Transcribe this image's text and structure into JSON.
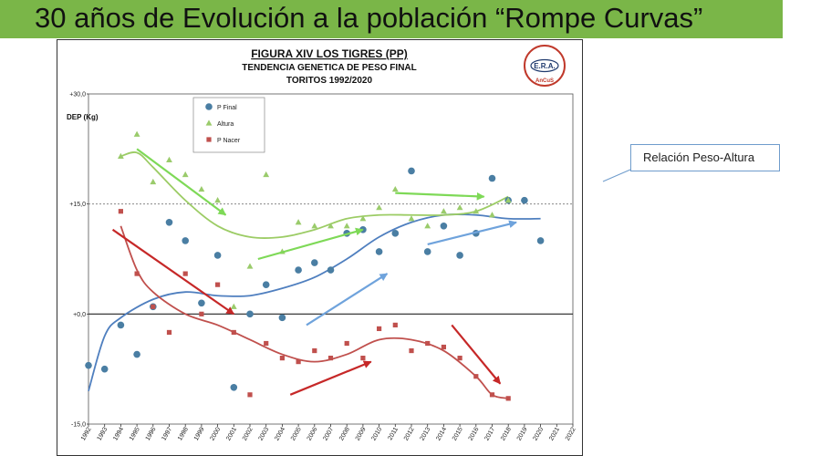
{
  "slide": {
    "title": "30 años de Evolución a la población “Rompe Curvas”",
    "callout": "Relación Peso-Altura"
  },
  "logo": {
    "text_main": "E.R.A.",
    "text_bottom": "AnCuS"
  },
  "colors": {
    "banner": "#7ab648",
    "p_final": "#4a7ea3",
    "altura": "#9acb6b",
    "p_nacer": "#c0504d",
    "trend_blue": "#4f7fbf",
    "trend_green": "#9ccc65",
    "trend_red": "#c0504d",
    "arrow_green": "#7ed957",
    "arrow_blue": "#6fa3dc",
    "arrow_red": "#c62828"
  },
  "chart_data": {
    "type": "scatter",
    "title": "FIGURA XIV LOS TIGRES (PP)",
    "subtitle": "TENDENCIA GENETICA DE PESO FINAL",
    "subtitle2": "TORITOS 1992/2020",
    "ylabel": "DEP (Kg)",
    "ylim": [
      -15,
      30
    ],
    "xlim": [
      1992,
      2022
    ],
    "yticks": [
      {
        "value": 30,
        "label": "+30,0"
      },
      {
        "value": 15,
        "label": "+15,0"
      },
      {
        "value": 0,
        "label": "+0,0"
      },
      {
        "value": -15,
        "label": "-15,0"
      }
    ],
    "reference_line": 15,
    "xticks": [
      1992,
      1993,
      1994,
      1995,
      1996,
      1997,
      1998,
      1999,
      2000,
      2001,
      2002,
      2003,
      2004,
      2005,
      2006,
      2007,
      2008,
      2009,
      2010,
      2011,
      2012,
      2013,
      2014,
      2015,
      2016,
      2017,
      2018,
      2019,
      2020,
      2021,
      2022
    ],
    "legend": [
      "P Final",
      "Altura",
      "P Nacer"
    ],
    "series": [
      {
        "name": "P Final",
        "marker": "circle",
        "x": [
          1992,
          1993,
          1994,
          1995,
          1996,
          1997,
          1998,
          1999,
          2000,
          2001,
          2002,
          2003,
          2004,
          2005,
          2006,
          2007,
          2008,
          2009,
          2010,
          2011,
          2012,
          2013,
          2014,
          2015,
          2016,
          2017,
          2018,
          2019,
          2020
        ],
        "y": [
          -7,
          -7.5,
          -1.5,
          -5.5,
          1,
          12.5,
          10,
          1.5,
          8,
          -10,
          0,
          4,
          -0.5,
          6,
          7,
          6,
          11,
          11.5,
          8.5,
          11,
          19.5,
          8.5,
          12,
          8,
          11,
          18.5,
          15.5,
          15.5,
          10
        ]
      },
      {
        "name": "Altura",
        "marker": "triangle",
        "x": [
          1994,
          1995,
          1996,
          1997,
          1998,
          1999,
          2000,
          2001,
          2002,
          2003,
          2004,
          2005,
          2006,
          2007,
          2008,
          2009,
          2010,
          2011,
          2012,
          2013,
          2014,
          2015,
          2016,
          2017,
          2018
        ],
        "y": [
          21.5,
          24.5,
          18,
          21,
          19,
          17,
          15.5,
          1,
          6.5,
          19,
          8.5,
          12.5,
          12,
          12,
          12,
          13,
          14.5,
          17,
          13,
          12,
          14,
          14.5,
          14,
          13.5,
          15.5
        ]
      },
      {
        "name": "P Nacer",
        "marker": "square",
        "x": [
          1994,
          1995,
          1996,
          1997,
          1998,
          1999,
          2000,
          2001,
          2002,
          2003,
          2004,
          2005,
          2006,
          2007,
          2008,
          2009,
          2010,
          2011,
          2012,
          2013,
          2014,
          2015,
          2016,
          2017,
          2018
        ],
        "y": [
          14,
          5.5,
          1,
          -2.5,
          5.5,
          0,
          4,
          -2.5,
          -11,
          -4,
          -6,
          -6.5,
          -5,
          -6,
          -4,
          -6,
          -2,
          -1.5,
          -5,
          -4,
          -4.5,
          -6,
          -8.5,
          -11,
          -11.5
        ]
      }
    ],
    "trendlines": [
      {
        "name": "P Final trend",
        "points": [
          [
            1992,
            -10.5
          ],
          [
            1993,
            -3
          ],
          [
            1994,
            -0.5
          ],
          [
            1996,
            2
          ],
          [
            1998,
            3
          ],
          [
            2000,
            2.5
          ],
          [
            2002,
            2.5
          ],
          [
            2004,
            3.5
          ],
          [
            2006,
            5
          ],
          [
            2008,
            7.5
          ],
          [
            2010,
            10.5
          ],
          [
            2012,
            12.5
          ],
          [
            2014,
            13.5
          ],
          [
            2016,
            13.5
          ],
          [
            2018,
            13
          ],
          [
            2020,
            13
          ]
        ]
      },
      {
        "name": "Altura trend",
        "points": [
          [
            1994,
            21.5
          ],
          [
            1995,
            22
          ],
          [
            1996,
            20
          ],
          [
            1998,
            15.5
          ],
          [
            2000,
            12
          ],
          [
            2002,
            10.5
          ],
          [
            2004,
            10.5
          ],
          [
            2006,
            11.5
          ],
          [
            2008,
            13
          ],
          [
            2010,
            13.5
          ],
          [
            2012,
            13.5
          ],
          [
            2014,
            13.5
          ],
          [
            2016,
            14
          ],
          [
            2018,
            16
          ]
        ]
      },
      {
        "name": "P Nacer trend",
        "points": [
          [
            1994,
            12
          ],
          [
            1995,
            6
          ],
          [
            1996,
            3
          ],
          [
            1998,
            0
          ],
          [
            2000,
            -1.5
          ],
          [
            2002,
            -3.5
          ],
          [
            2004,
            -5.5
          ],
          [
            2006,
            -6.5
          ],
          [
            2008,
            -5.5
          ],
          [
            2010,
            -3.5
          ],
          [
            2012,
            -3.5
          ],
          [
            2014,
            -5
          ],
          [
            2016,
            -8.5
          ],
          [
            2017,
            -11
          ],
          [
            2018,
            -11.5
          ]
        ]
      }
    ],
    "arrows": [
      {
        "color_key": "arrow_green",
        "from": [
          1995,
          22.5
        ],
        "to": [
          2000.5,
          13.5
        ]
      },
      {
        "color_key": "arrow_green",
        "from": [
          2002.5,
          7.5
        ],
        "to": [
          2009,
          11.5
        ]
      },
      {
        "color_key": "arrow_green",
        "from": [
          2011,
          16.5
        ],
        "to": [
          2016.5,
          16
        ]
      },
      {
        "color_key": "arrow_blue",
        "from": [
          2005.5,
          -1.5
        ],
        "to": [
          2010.5,
          5.5
        ]
      },
      {
        "color_key": "arrow_blue",
        "from": [
          2013,
          9.5
        ],
        "to": [
          2018.5,
          12.5
        ]
      },
      {
        "color_key": "arrow_red",
        "from": [
          1993.5,
          11.5
        ],
        "to": [
          2001,
          0
        ]
      },
      {
        "color_key": "arrow_red",
        "from": [
          2004.5,
          -11
        ],
        "to": [
          2009.5,
          -6.5
        ]
      },
      {
        "color_key": "arrow_red",
        "from": [
          2014.5,
          -1.5
        ],
        "to": [
          2017.5,
          -9.5
        ]
      }
    ]
  }
}
